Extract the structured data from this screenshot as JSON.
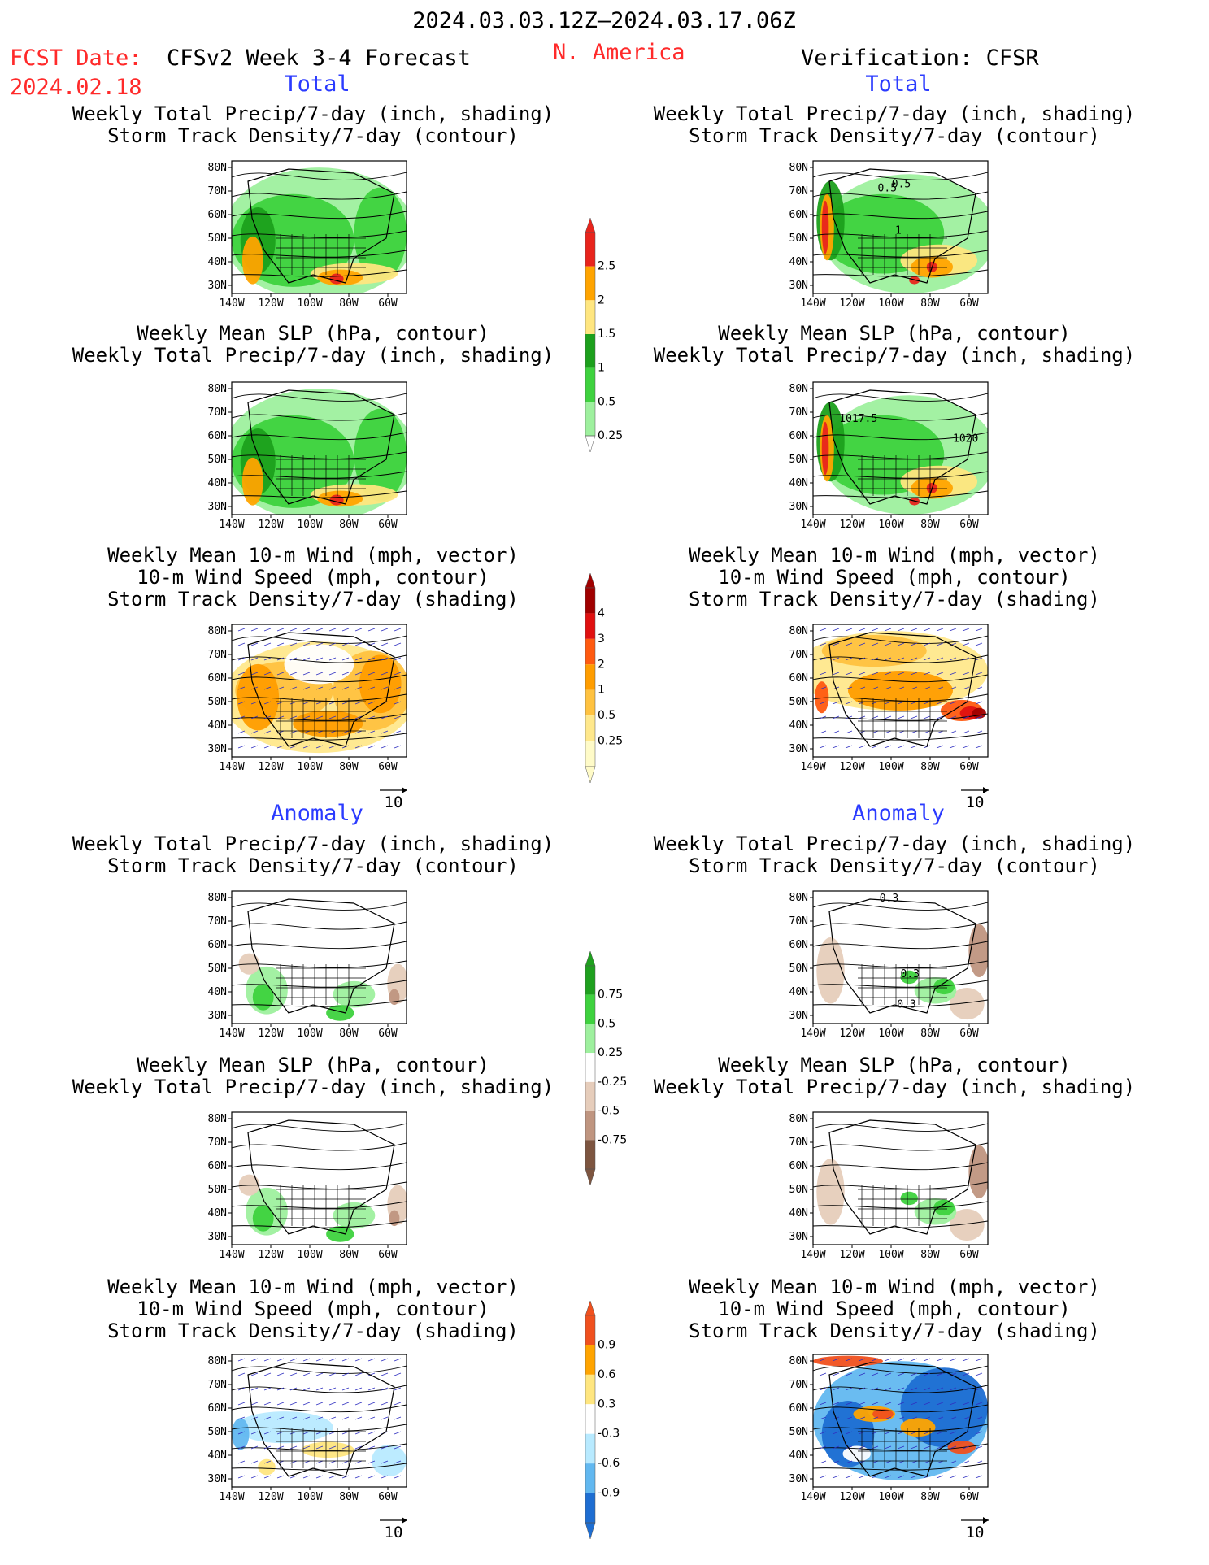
{
  "header": {
    "date_range": "2024.03.03.12Z–2024.03.17.06Z",
    "fcst_label": "FCST Date:",
    "fcst_date": "2024.02.18",
    "forecast_title": "CFSv2 Week 3-4 Forecast",
    "region": "N. America",
    "verification": "Verification: CFSR"
  },
  "sections": {
    "total": "Total",
    "anomaly": "Anomaly"
  },
  "panel_titles": {
    "precip_storm": [
      "Weekly Total Precip/7-day (inch, shading)",
      "Storm Track Density/7-day (contour)"
    ],
    "slp_precip": [
      "Weekly Mean SLP (hPa, contour)",
      "Weekly Total Precip/7-day (inch, shading)"
    ],
    "wind_storm": [
      "Weekly Mean 10-m Wind (mph, vector)",
      "10-m Wind Speed (mph, contour)",
      "Storm Track Density/7-day (shading)"
    ]
  },
  "axes": {
    "lat_labels": [
      "80N",
      "70N",
      "60N",
      "50N",
      "40N",
      "30N"
    ],
    "lon_labels": [
      "140W",
      "120W",
      "100W",
      "80W",
      "60W"
    ]
  },
  "vector_reference": "10",
  "contour_labels": {
    "cfsr_total_storm": [
      "0.5",
      "0.5",
      "1"
    ],
    "cfsr_total_slp": [
      "1017.5",
      "1020"
    ],
    "cfsr_anom_storm": [
      "0.3",
      "0.3",
      "0.3"
    ]
  },
  "colorbars": {
    "total_precip": {
      "labels": [
        "2.5",
        "2",
        "1.5",
        "1",
        "0.5",
        "0.25"
      ],
      "colors": [
        "#e8241c",
        "#ffa400",
        "#ffe680",
        "#1ca01c",
        "#3ed23e",
        "#9ef09e"
      ]
    },
    "total_storm": {
      "labels": [
        "4",
        "3",
        "2",
        "1",
        "0.5",
        "0.25"
      ],
      "colors": [
        "#a00000",
        "#e01010",
        "#ff5a10",
        "#ff9d00",
        "#ffc240",
        "#ffe88c",
        "#fffbc8"
      ]
    },
    "anom_precip": {
      "labels": [
        "0.75",
        "0.5",
        "0.25",
        "-0.25",
        "-0.5",
        "-0.75"
      ],
      "colors": [
        "#1ea01e",
        "#3ed23e",
        "#9ef09e",
        "#ffffff",
        "#e6cdbb",
        "#bf9580",
        "#7d5540"
      ]
    },
    "anom_storm": {
      "labels": [
        "0.9",
        "0.6",
        "0.3",
        "-0.3",
        "-0.6",
        "-0.9"
      ],
      "colors": [
        "#f0501e",
        "#ffa400",
        "#ffe680",
        "#ffffff",
        "#b8eaff",
        "#62b8f0",
        "#1e6ed2"
      ]
    }
  },
  "panels": [
    {
      "name": "fcst-total-precip-storm",
      "title": "precip_storm",
      "shading": "precip_total"
    },
    {
      "name": "cfsr-total-precip-storm",
      "title": "precip_storm",
      "shading": "precip_total_cfsr"
    },
    {
      "name": "fcst-total-slp-precip",
      "title": "slp_precip",
      "shading": "precip_total"
    },
    {
      "name": "cfsr-total-slp-precip",
      "title": "slp_precip",
      "shading": "precip_total_cfsr"
    },
    {
      "name": "fcst-total-wind-storm",
      "title": "wind_storm",
      "shading": "storm_total"
    },
    {
      "name": "cfsr-total-wind-storm",
      "title": "wind_storm",
      "shading": "storm_total_cfsr"
    },
    {
      "name": "fcst-anom-precip-storm",
      "title": "precip_storm",
      "shading": "precip_anom"
    },
    {
      "name": "cfsr-anom-precip-storm",
      "title": "precip_storm",
      "shading": "precip_anom_cfsr"
    },
    {
      "name": "fcst-anom-slp-precip",
      "title": "slp_precip",
      "shading": "precip_anom"
    },
    {
      "name": "cfsr-anom-slp-precip",
      "title": "slp_precip",
      "shading": "precip_anom_cfsr"
    },
    {
      "name": "fcst-anom-wind-storm",
      "title": "wind_storm",
      "shading": "storm_anom"
    },
    {
      "name": "cfsr-anom-wind-storm",
      "title": "wind_storm",
      "shading": "storm_anom_cfsr"
    }
  ]
}
